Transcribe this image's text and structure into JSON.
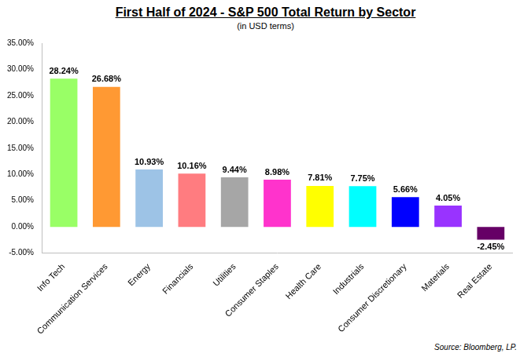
{
  "chart_data": {
    "type": "bar",
    "title": "First Half of 2024 - S&P 500 Total Return by Sector",
    "subtitle": "(in USD terms)",
    "annotations": [
      "Source: Bloomberg, LP."
    ],
    "categories": [
      "Info Tech",
      "Communication Services",
      "Energy",
      "Financials",
      "Utilities",
      "Consumer Staples",
      "Health Care",
      "Industrials",
      "Consumer Discretionary",
      "Materials",
      "Real Estate"
    ],
    "values": [
      28.24,
      26.68,
      10.93,
      10.16,
      9.44,
      8.98,
      7.81,
      7.75,
      5.66,
      4.05,
      -2.45
    ],
    "value_labels": [
      "28.24%",
      "26.68%",
      "10.93%",
      "10.16%",
      "9.44%",
      "8.98%",
      "7.81%",
      "7.75%",
      "5.66%",
      "4.05%",
      "-2.45%"
    ],
    "colors": [
      "#99ff66",
      "#ff9933",
      "#9dc3e6",
      "#ff7c80",
      "#a6a6a6",
      "#ff33cc",
      "#ffff00",
      "#00ffff",
      "#0000ff",
      "#9933ff",
      "#660066"
    ],
    "ylim": [
      -5,
      35
    ],
    "yticks": [
      {
        "value": -5,
        "label": "-5.00%"
      },
      {
        "value": 0,
        "label": "0.00%"
      },
      {
        "value": 5,
        "label": "5.00%"
      },
      {
        "value": 10,
        "label": "10.00%"
      },
      {
        "value": 15,
        "label": "15.00%"
      },
      {
        "value": 20,
        "label": "20.00%"
      },
      {
        "value": 25,
        "label": "25.00%"
      },
      {
        "value": 30,
        "label": "30.00%"
      },
      {
        "value": 35,
        "label": "35.00%"
      }
    ],
    "grid": false,
    "data_labels": true
  }
}
